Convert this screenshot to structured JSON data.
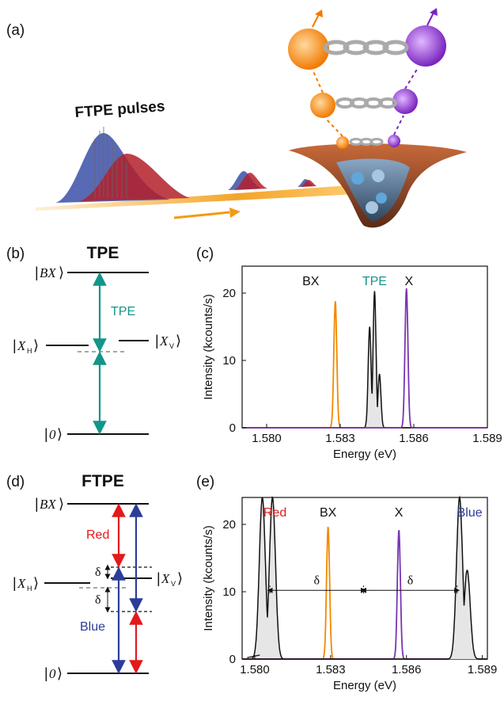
{
  "panel_labels": {
    "a": "(a)",
    "b": "(b)",
    "c": "(c)",
    "d": "(d)",
    "e": "(e)"
  },
  "colors": {
    "teal": "#13958a",
    "red": "#e3191c",
    "blue": "#2b3d9a",
    "orange": "#f18a00",
    "purple": "#7a34b0"
  },
  "panel_a": {
    "pulses_label": "FTPE pulses"
  },
  "panel_b": {
    "title": "TPE",
    "arrow_label": "TPE",
    "states": {
      "bx": "BX",
      "xh": "X",
      "xh_sub": "H",
      "xv": "X",
      "xv_sub": "V",
      "ground": "0"
    }
  },
  "panel_d": {
    "title": "FTPE",
    "red_label": "Red",
    "blue_label": "Blue",
    "delta": "δ",
    "states": {
      "bx": "BX",
      "xh": "X",
      "xh_sub": "H",
      "xv": "X",
      "xv_sub": "V",
      "ground": "0"
    }
  },
  "chart_data": [
    {
      "type": "line",
      "panel": "c",
      "xlabel": "Energy (eV)",
      "ylabel": "Intensity (kcounts/s)",
      "xlim": [
        1.579,
        1.589
      ],
      "ylim": [
        0,
        24
      ],
      "xticks": [
        "1.580",
        "1.583",
        "1.586",
        "1.589"
      ],
      "yticks": [
        "0",
        "10",
        "20"
      ],
      "peak_labels": [
        "BX",
        "TPE",
        "X"
      ],
      "series": [
        {
          "name": "BX",
          "x": [
            1.5828
          ],
          "y": [
            18.8
          ]
        },
        {
          "name": "TPE",
          "x": [
            1.5842,
            1.5844,
            1.5846
          ],
          "y": [
            15.0,
            20.3,
            8.0
          ]
        },
        {
          "name": "X",
          "x": [
            1.5857
          ],
          "y": [
            20.7
          ]
        }
      ]
    },
    {
      "type": "line",
      "panel": "e",
      "xlabel": "Energy (eV)",
      "ylabel": "Intensity (kcounts/s)",
      "xlim": [
        1.5795,
        1.5892
      ],
      "ylim": [
        0,
        24
      ],
      "xticks": [
        "1.580",
        "1.583",
        "1.586",
        "1.589"
      ],
      "yticks": [
        "0",
        "10",
        "20"
      ],
      "peak_labels": [
        "Red",
        "BX",
        "X",
        "Blue"
      ],
      "delta_label": "δ",
      "series": [
        {
          "name": "Red",
          "x": [
            1.5803,
            1.5807
          ],
          "y": [
            24,
            24
          ]
        },
        {
          "name": "BX",
          "x": [
            1.5829
          ],
          "y": [
            19.7
          ]
        },
        {
          "name": "X",
          "x": [
            1.5857
          ],
          "y": [
            19.2
          ]
        },
        {
          "name": "Blue",
          "x": [
            1.5881,
            1.5884
          ],
          "y": [
            24,
            13.2
          ]
        }
      ]
    }
  ]
}
